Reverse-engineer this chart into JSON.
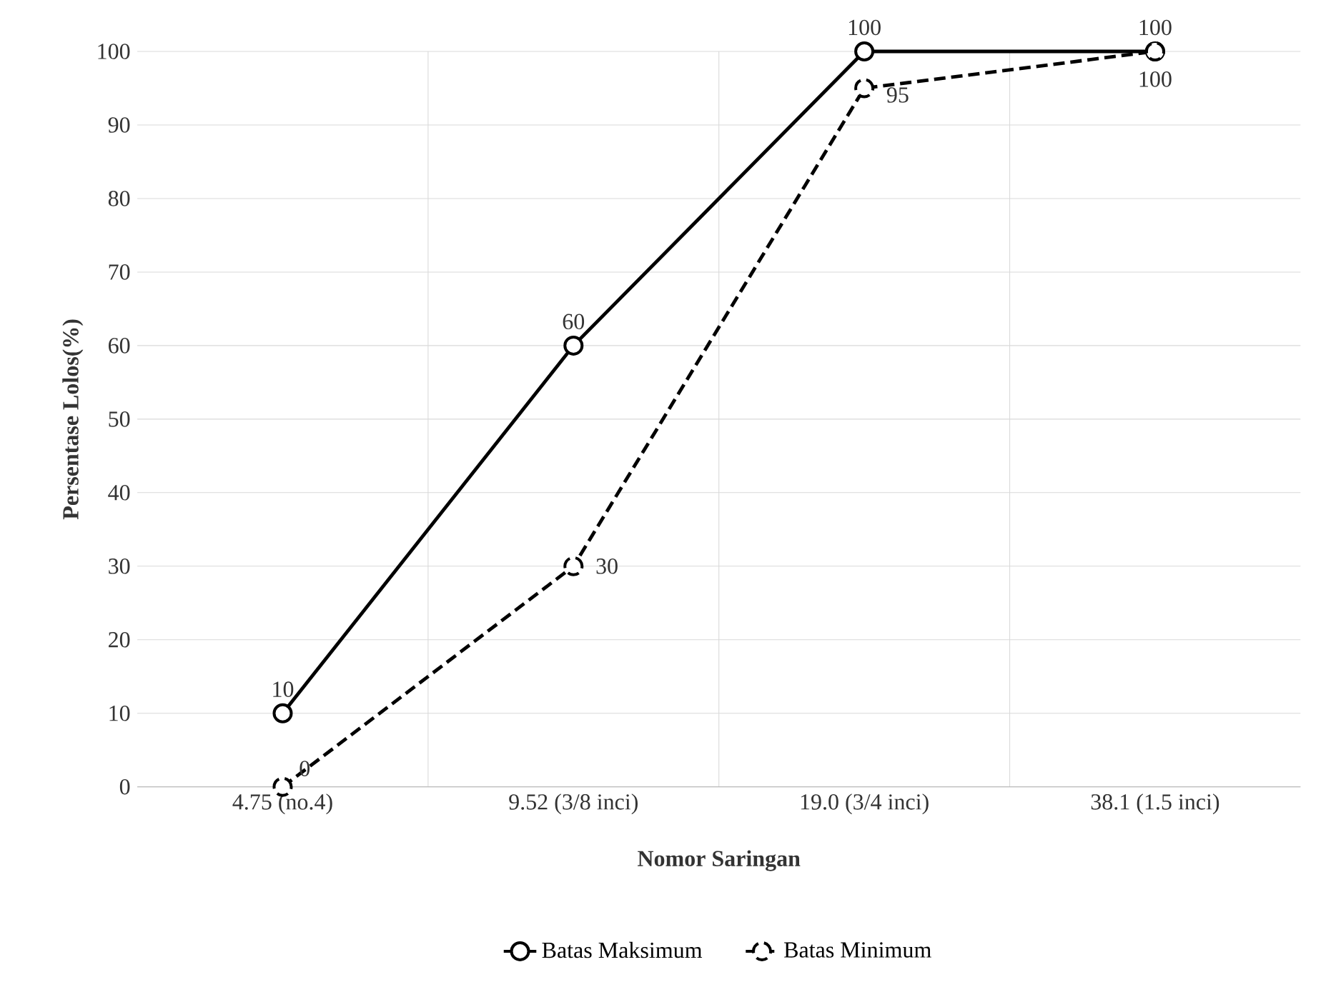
{
  "chart_data": {
    "type": "line",
    "xlabel": "Nomor Saringan",
    "ylabel": "Persentase Lolos(%)",
    "categories": [
      "4.75 (no.4)",
      "9.52 (3/8 inci)",
      "19.0 (3/4 inci)",
      "38.1 (1.5 inci)"
    ],
    "series": [
      {
        "name": "Batas Maksimum",
        "color": "#000000",
        "line_style": "solid",
        "values": [
          10,
          60,
          100,
          100
        ]
      },
      {
        "name": "Batas Minimum",
        "color": "#000000",
        "line_style": "dashed",
        "values": [
          0,
          30,
          95,
          100
        ]
      }
    ],
    "ylim": [
      0,
      100
    ],
    "yticks": [
      0,
      10,
      20,
      30,
      40,
      50,
      60,
      70,
      80,
      90,
      100
    ],
    "grid": true,
    "legend": "bottom",
    "marker": "circle",
    "data_labels": true
  }
}
